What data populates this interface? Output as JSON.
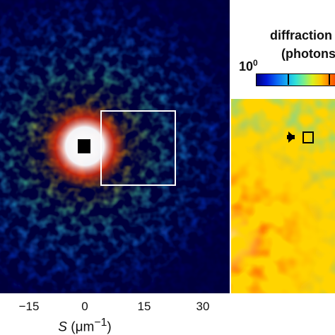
{
  "x_axis": {
    "ticks": [
      "−15",
      "0",
      "15",
      "30"
    ],
    "title_var": "S",
    "title_unit": "(μm",
    "title_exp": "−1",
    "title_close": ")"
  },
  "colorbar": {
    "title_line1": "diffraction",
    "title_line2": "(photons",
    "min_base": "10",
    "min_exp": "0"
  }
}
